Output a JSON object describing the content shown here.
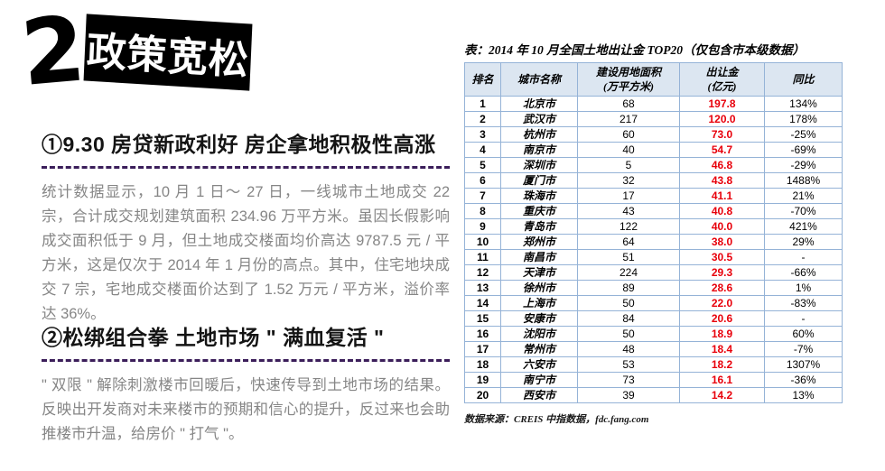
{
  "header": {
    "number": "2.",
    "title": "政策宽松"
  },
  "sections": [
    {
      "heading": "①9.30 房贷新政利好 房企拿地积极性高涨",
      "body": "统计数据显示，10 月 1 日～ 27 日，一线城市土地成交 22 宗，合计成交规划建筑面积 234.96 万平方米。虽因长假影响成交面积低于 9 月，但土地成交楼面均价高达 9787.5 元 / 平方米，这是仅次于 2014 年 1 月份的高点。其中，住宅地块成交 7 宗，宅地成交楼面价达到了 1.52 万元 / 平方米，溢价率达 36%。"
    },
    {
      "heading": "②松绑组合拳 土地市场 \" 满血复活 \"",
      "body": "\" 双限 \" 解除刺激楼市回暖后，快速传导到土地市场的结果。反映出开发商对未来楼市的预期和信心的提升，反过来也会助推楼市升温，给房价 \" 打气 \"。"
    }
  ],
  "table": {
    "title": "表：2014 年 10 月全国土地出让金 TOP20（仅包含市本级数据）",
    "columns": [
      {
        "line1": "排名",
        "line2": ""
      },
      {
        "line1": "城市名称",
        "line2": ""
      },
      {
        "line1": "建设用地面积",
        "line2": "(万平方米)"
      },
      {
        "line1": "出让金",
        "line2": "(亿元)"
      },
      {
        "line1": "同比",
        "line2": ""
      }
    ],
    "rows": [
      [
        "1",
        "北京市",
        "68",
        "197.8",
        "134%"
      ],
      [
        "2",
        "武汉市",
        "217",
        "120.0",
        "178%"
      ],
      [
        "3",
        "杭州市",
        "60",
        "73.0",
        "-25%"
      ],
      [
        "4",
        "南京市",
        "40",
        "54.7",
        "-69%"
      ],
      [
        "5",
        "深圳市",
        "5",
        "46.8",
        "-29%"
      ],
      [
        "6",
        "厦门市",
        "32",
        "43.8",
        "1488%"
      ],
      [
        "7",
        "珠海市",
        "17",
        "41.1",
        "21%"
      ],
      [
        "8",
        "重庆市",
        "43",
        "40.8",
        "-70%"
      ],
      [
        "9",
        "青岛市",
        "122",
        "40.0",
        "421%"
      ],
      [
        "10",
        "郑州市",
        "64",
        "38.0",
        "29%"
      ],
      [
        "11",
        "南昌市",
        "51",
        "30.5",
        "-"
      ],
      [
        "12",
        "天津市",
        "224",
        "29.3",
        "-66%"
      ],
      [
        "13",
        "徐州市",
        "89",
        "28.6",
        "1%"
      ],
      [
        "14",
        "上海市",
        "50",
        "22.0",
        "-83%"
      ],
      [
        "15",
        "安康市",
        "84",
        "20.6",
        "-"
      ],
      [
        "16",
        "沈阳市",
        "50",
        "18.9",
        "60%"
      ],
      [
        "17",
        "常州市",
        "48",
        "18.4",
        "-7%"
      ],
      [
        "18",
        "六安市",
        "53",
        "18.2",
        "1307%"
      ],
      [
        "19",
        "南宁市",
        "73",
        "16.1",
        "-36%"
      ],
      [
        "20",
        "西安市",
        "39",
        "14.2",
        "13%"
      ]
    ],
    "source": "数据来源：CREIS 中指数据，fdc.fang.com"
  },
  "colors": {
    "banner_bg": "#000000",
    "banner_text": "#ffffff",
    "accent_red": "#e8000b",
    "dash_line": "#3b1e5a",
    "table_border": "#95b3d7",
    "table_header_bg": "#dce6f1",
    "body_text_gray": "#868686"
  }
}
